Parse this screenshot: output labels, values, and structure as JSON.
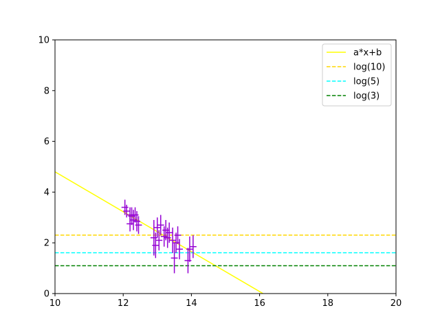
{
  "chart_data": {
    "type": "scatter",
    "title": "",
    "xlabel": "",
    "ylabel": "",
    "xlim": [
      10,
      20
    ],
    "ylim": [
      0,
      10
    ],
    "xticks": [
      "10",
      "12",
      "14",
      "16",
      "18",
      "20"
    ],
    "yticks": [
      "0",
      "2",
      "4",
      "6",
      "8",
      "10"
    ],
    "grid": false,
    "legend_position": "top-right",
    "series": [
      {
        "name": "a*x+b",
        "kind": "line",
        "style": "solid",
        "color": "#ffff00",
        "x": [
          10,
          16.1
        ],
        "y": [
          4.8,
          0
        ]
      },
      {
        "name": "log(10)",
        "kind": "hline",
        "style": "dashed",
        "color": "#ffd700",
        "y": 2.303
      },
      {
        "name": "log(5)",
        "kind": "hline",
        "style": "dashed",
        "color": "#00ffff",
        "y": 1.609
      },
      {
        "name": "log(3)",
        "kind": "hline",
        "style": "dashed",
        "color": "#008000",
        "y": 1.099
      }
    ],
    "errorbar_points": {
      "color": "#9400d3",
      "xerr": 0.1,
      "points": [
        {
          "x": 12.05,
          "y": 3.4,
          "yerr": 0.3
        },
        {
          "x": 12.1,
          "y": 3.25,
          "yerr": 0.25
        },
        {
          "x": 12.2,
          "y": 3.1,
          "yerr": 0.3
        },
        {
          "x": 12.2,
          "y": 2.75,
          "yerr": 0.3
        },
        {
          "x": 12.25,
          "y": 3.05,
          "yerr": 0.35
        },
        {
          "x": 12.3,
          "y": 2.9,
          "yerr": 0.4
        },
        {
          "x": 12.35,
          "y": 3.1,
          "yerr": 0.3
        },
        {
          "x": 12.4,
          "y": 2.85,
          "yerr": 0.4
        },
        {
          "x": 12.45,
          "y": 2.7,
          "yerr": 0.35
        },
        {
          "x": 12.9,
          "y": 2.2,
          "yerr": 0.7
        },
        {
          "x": 12.95,
          "y": 1.9,
          "yerr": 0.5
        },
        {
          "x": 13.0,
          "y": 2.6,
          "yerr": 0.4
        },
        {
          "x": 13.05,
          "y": 2.1,
          "yerr": 0.4
        },
        {
          "x": 13.1,
          "y": 2.7,
          "yerr": 0.4
        },
        {
          "x": 13.2,
          "y": 2.25,
          "yerr": 0.4
        },
        {
          "x": 13.25,
          "y": 2.5,
          "yerr": 0.4
        },
        {
          "x": 13.3,
          "y": 2.2,
          "yerr": 0.4
        },
        {
          "x": 13.35,
          "y": 2.4,
          "yerr": 0.4
        },
        {
          "x": 13.45,
          "y": 2.1,
          "yerr": 0.5
        },
        {
          "x": 13.5,
          "y": 1.4,
          "yerr": 0.6
        },
        {
          "x": 13.55,
          "y": 2.0,
          "yerr": 0.4
        },
        {
          "x": 13.6,
          "y": 2.3,
          "yerr": 0.35
        },
        {
          "x": 13.65,
          "y": 1.75,
          "yerr": 0.4
        },
        {
          "x": 13.9,
          "y": 1.3,
          "yerr": 0.5
        },
        {
          "x": 13.95,
          "y": 1.75,
          "yerr": 0.5
        },
        {
          "x": 14.05,
          "y": 1.85,
          "yerr": 0.45
        }
      ]
    }
  }
}
